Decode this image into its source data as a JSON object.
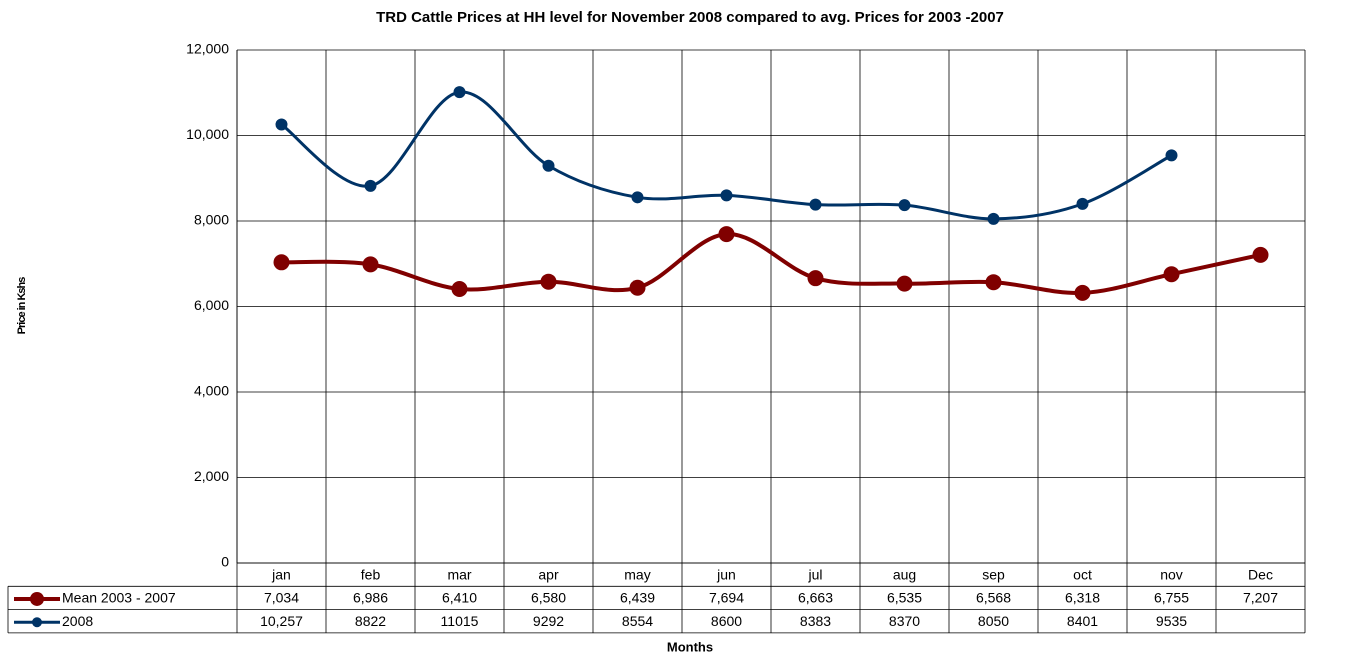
{
  "chart_data": {
    "type": "line",
    "title": "TRD Cattle Prices at HH level for November 2008 compared to avg. Prices for 2003 -2007",
    "x_label": "Months",
    "y_label": "Price in Kshs",
    "categories": [
      "jan",
      "feb",
      "mar",
      "apr",
      "may",
      "jun",
      "jul",
      "aug",
      "sep",
      "oct",
      "nov",
      "Dec"
    ],
    "series": [
      {
        "name": "Mean 2003 - 2007",
        "color": "#800000",
        "values": [
          7034,
          6986,
          6410,
          6580,
          6439,
          7694,
          6663,
          6535,
          6568,
          6318,
          6755,
          7207
        ],
        "value_labels": [
          "7,034",
          "6,986",
          "6,410",
          "6,580",
          "6,439",
          "7,694",
          "6,663",
          "6,535",
          "6,568",
          "6,318",
          "6,755",
          "7,207"
        ]
      },
      {
        "name": "2008",
        "color": "#003366",
        "values": [
          10257,
          8822,
          11015,
          9292,
          8554,
          8600,
          8383,
          8370,
          8050,
          8401,
          9535,
          null
        ],
        "value_labels": [
          "10,257",
          "8822",
          "11015",
          "9292",
          "8554",
          "8600",
          "8383",
          "8370",
          "8050",
          "8401",
          "9535",
          null
        ]
      }
    ],
    "ylim": [
      0,
      12000
    ],
    "yticks": [
      0,
      {
        "value": 2000,
        "label": "2,000"
      },
      {
        "value": 4000,
        "label": "4,000"
      },
      {
        "value": 6000,
        "label": "6,000"
      },
      {
        "value": 8000,
        "label": "8,000"
      },
      {
        "value": 10000,
        "label": "10,000"
      },
      {
        "value": 12000,
        "label": "12,000"
      }
    ],
    "grid": true,
    "smooth": true
  }
}
